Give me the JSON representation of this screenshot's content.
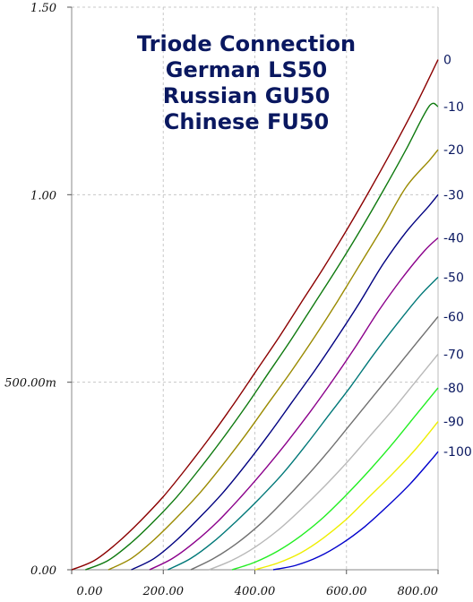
{
  "chart_data": {
    "type": "line",
    "title_lines": [
      "Triode Connection",
      "German LS50",
      "Russian GU50",
      "Chinese FU50"
    ],
    "xlabel": "",
    "ylabel": "",
    "xlim": [
      0,
      800
    ],
    "ylim": [
      0,
      1.5
    ],
    "x_ticks": [
      {
        "value": 0,
        "label": "0.00"
      },
      {
        "value": 200,
        "label": "200.00"
      },
      {
        "value": 400,
        "label": "400.00"
      },
      {
        "value": 600,
        "label": "600.00"
      },
      {
        "value": 800,
        "label": "800.00"
      }
    ],
    "y_ticks": [
      {
        "value": 0,
        "label": "0.00"
      },
      {
        "value": 0.5,
        "label": "500.00m"
      },
      {
        "value": 1.0,
        "label": "1.00"
      },
      {
        "value": 1.5,
        "label": "1.50"
      }
    ],
    "grid": true,
    "series": [
      {
        "name": "0",
        "color": "#8b0000",
        "x": [
          0,
          50,
          100,
          150,
          200,
          250,
          300,
          350,
          400,
          450,
          500,
          550,
          600,
          650,
          700,
          750,
          800
        ],
        "y": [
          0,
          0.025,
          0.072,
          0.13,
          0.195,
          0.27,
          0.35,
          0.435,
          0.525,
          0.615,
          0.71,
          0.805,
          0.905,
          1.01,
          1.12,
          1.235,
          1.36
        ]
      },
      {
        "name": "-10",
        "color": "#0f7a0f",
        "x": [
          30,
          80,
          130,
          180,
          230,
          280,
          330,
          380,
          430,
          480,
          530,
          580,
          630,
          680,
          730,
          780,
          800
        ],
        "y": [
          0,
          0.025,
          0.072,
          0.13,
          0.195,
          0.27,
          0.35,
          0.435,
          0.525,
          0.615,
          0.71,
          0.805,
          0.905,
          1.01,
          1.12,
          1.235,
          1.235
        ]
      },
      {
        "name": "-20",
        "color": "#9a8a00",
        "x": [
          80,
          130,
          180,
          230,
          280,
          330,
          380,
          430,
          480,
          530,
          580,
          630,
          680,
          730,
          780,
          800
        ],
        "y": [
          0,
          0.03,
          0.08,
          0.14,
          0.205,
          0.28,
          0.36,
          0.445,
          0.53,
          0.62,
          0.715,
          0.815,
          0.915,
          1.02,
          1.09,
          1.12
        ]
      },
      {
        "name": "-30",
        "color": "#000080",
        "x": [
          130,
          180,
          230,
          280,
          330,
          380,
          430,
          480,
          530,
          580,
          630,
          680,
          730,
          780,
          800
        ],
        "y": [
          0,
          0.03,
          0.08,
          0.14,
          0.205,
          0.28,
          0.36,
          0.445,
          0.53,
          0.62,
          0.715,
          0.815,
          0.9,
          0.97,
          1.0
        ]
      },
      {
        "name": "-40",
        "color": "#8b008b",
        "x": [
          170,
          220,
          270,
          320,
          370,
          420,
          470,
          520,
          570,
          620,
          670,
          720,
          770,
          800
        ],
        "y": [
          0,
          0.03,
          0.075,
          0.13,
          0.195,
          0.265,
          0.34,
          0.42,
          0.505,
          0.595,
          0.69,
          0.775,
          0.85,
          0.885
        ]
      },
      {
        "name": "-50",
        "color": "#007878",
        "x": [
          210,
          260,
          310,
          360,
          410,
          460,
          510,
          560,
          610,
          660,
          710,
          760,
          800
        ],
        "y": [
          0,
          0.03,
          0.075,
          0.13,
          0.19,
          0.255,
          0.33,
          0.41,
          0.49,
          0.575,
          0.655,
          0.73,
          0.78
        ]
      },
      {
        "name": "-60",
        "color": "#707070",
        "x": [
          260,
          310,
          360,
          410,
          460,
          510,
          560,
          610,
          660,
          710,
          760,
          800
        ],
        "y": [
          0,
          0.03,
          0.07,
          0.12,
          0.18,
          0.245,
          0.315,
          0.39,
          0.465,
          0.54,
          0.615,
          0.675
        ]
      },
      {
        "name": "-70",
        "color": "#b8b8b8",
        "x": [
          300,
          350,
          400,
          450,
          500,
          550,
          600,
          650,
          700,
          750,
          800
        ],
        "y": [
          0,
          0.025,
          0.06,
          0.105,
          0.16,
          0.22,
          0.285,
          0.355,
          0.425,
          0.5,
          0.575
        ]
      },
      {
        "name": "-80",
        "color": "#22ee22",
        "x": [
          350,
          400,
          450,
          500,
          550,
          600,
          650,
          700,
          750,
          800
        ],
        "y": [
          0,
          0.02,
          0.05,
          0.09,
          0.14,
          0.2,
          0.265,
          0.335,
          0.41,
          0.485
        ]
      },
      {
        "name": "-90",
        "color": "#eeee00",
        "x": [
          400,
          450,
          500,
          550,
          600,
          650,
          700,
          750,
          800
        ],
        "y": [
          0,
          0.018,
          0.045,
          0.085,
          0.135,
          0.195,
          0.255,
          0.32,
          0.395
        ]
      },
      {
        "name": "-100",
        "color": "#0000cc",
        "x": [
          440,
          490,
          540,
          590,
          640,
          690,
          740,
          790,
          800
        ],
        "y": [
          0,
          0.012,
          0.035,
          0.07,
          0.115,
          0.17,
          0.23,
          0.3,
          0.315
        ]
      }
    ]
  }
}
